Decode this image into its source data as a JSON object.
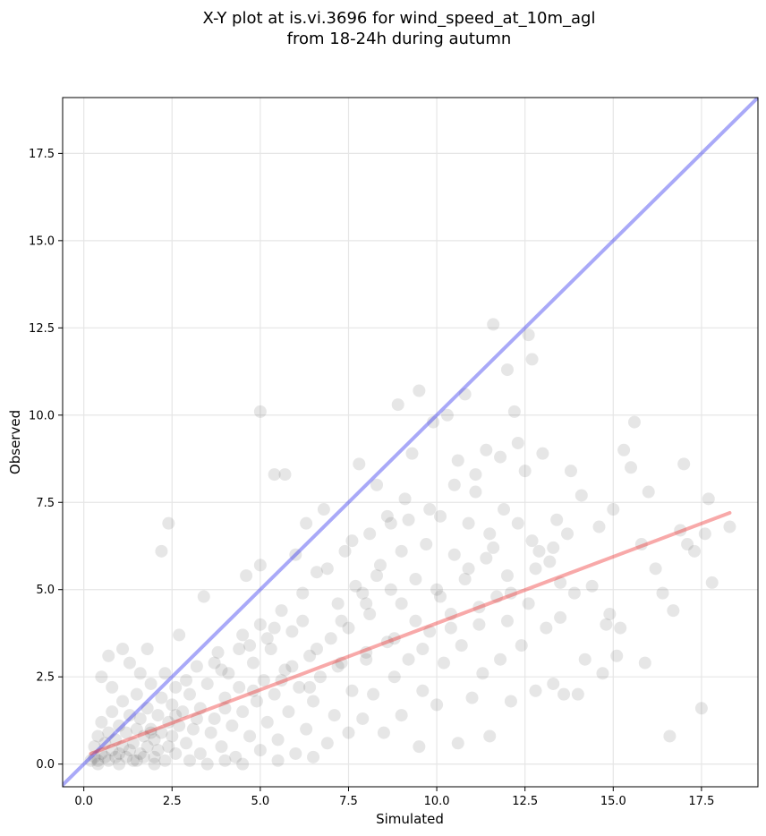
{
  "chart_data": {
    "type": "scatter",
    "title_line1": "X-Y plot at is.vi.3696 for wind_speed_at_10m_agl",
    "title_line2": "from 18-24h during autumn",
    "xlabel": "Simulated",
    "ylabel": "Observed",
    "xlim": [
      -0.6,
      19.1
    ],
    "ylim": [
      -0.65,
      19.1
    ],
    "xticks": [
      0.0,
      2.5,
      5.0,
      7.5,
      10.0,
      12.5,
      15.0,
      17.5
    ],
    "yticks": [
      0.0,
      2.5,
      5.0,
      7.5,
      10.0,
      12.5,
      15.0,
      17.5
    ],
    "xtick_labels": [
      "0.0",
      "2.5",
      "5.0",
      "7.5",
      "10.0",
      "12.5",
      "15.0",
      "17.5"
    ],
    "ytick_labels": [
      "0.0",
      "2.5",
      "5.0",
      "7.5",
      "10.0",
      "12.5",
      "15.0",
      "17.5"
    ],
    "grid": true,
    "point_color": "#333333",
    "point_opacity": 0.12,
    "identity_line": {
      "x": [
        -0.6,
        19.1
      ],
      "y": [
        -0.6,
        19.1
      ],
      "color": "#3333ee"
    },
    "fit_line": {
      "x": [
        0.2,
        18.3
      ],
      "y": [
        0.3,
        7.2
      ],
      "color": "#ee3333"
    },
    "points": [
      [
        0.2,
        0.1
      ],
      [
        0.3,
        0.2
      ],
      [
        0.3,
        0.5
      ],
      [
        0.4,
        0.1
      ],
      [
        0.4,
        0.8
      ],
      [
        0.5,
        0.3
      ],
      [
        0.5,
        1.2
      ],
      [
        0.6,
        0.2
      ],
      [
        0.6,
        0.6
      ],
      [
        0.7,
        0.9
      ],
      [
        0.7,
        0.1
      ],
      [
        0.8,
        0.4
      ],
      [
        0.8,
        1.5
      ],
      [
        0.9,
        0.2
      ],
      [
        0.9,
        0.7
      ],
      [
        1.0,
        0.3
      ],
      [
        1.0,
        1.1
      ],
      [
        1.1,
        0.5
      ],
      [
        1.1,
        1.8
      ],
      [
        1.2,
        0.2
      ],
      [
        1.2,
        0.9
      ],
      [
        1.3,
        0.4
      ],
      [
        1.3,
        1.4
      ],
      [
        1.4,
        0.1
      ],
      [
        1.4,
        0.6
      ],
      [
        1.5,
        1.0
      ],
      [
        1.5,
        2.0
      ],
      [
        1.6,
        0.3
      ],
      [
        1.6,
        1.3
      ],
      [
        1.7,
        0.8
      ],
      [
        1.7,
        0.2
      ],
      [
        1.8,
        1.6
      ],
      [
        1.8,
        0.5
      ],
      [
        1.9,
        1.0
      ],
      [
        1.9,
        2.3
      ],
      [
        2.0,
        0.2
      ],
      [
        2.0,
        0.7
      ],
      [
        2.1,
        1.4
      ],
      [
        2.1,
        0.4
      ],
      [
        2.2,
        1.9
      ],
      [
        2.2,
        0.9
      ],
      [
        2.3,
        0.1
      ],
      [
        2.3,
        2.6
      ],
      [
        2.4,
        1.2
      ],
      [
        2.4,
        0.5
      ],
      [
        2.5,
        1.7
      ],
      [
        2.5,
        0.8
      ],
      [
        2.6,
        2.2
      ],
      [
        2.6,
        0.3
      ],
      [
        2.7,
        1.1
      ],
      [
        0.5,
        2.5
      ],
      [
        0.7,
        3.1
      ],
      [
        1.1,
        3.3
      ],
      [
        1.8,
        3.3
      ],
      [
        2.2,
        6.1
      ],
      [
        2.4,
        6.9
      ],
      [
        2.7,
        3.7
      ],
      [
        1.3,
        2.9
      ],
      [
        0.8,
        2.2
      ],
      [
        1.6,
        2.6
      ],
      [
        2.8,
        1.5
      ],
      [
        2.9,
        0.6
      ],
      [
        3.0,
        2.0
      ],
      [
        3.1,
        1.0
      ],
      [
        3.2,
        2.8
      ],
      [
        3.3,
        0.3
      ],
      [
        3.3,
        1.6
      ],
      [
        3.4,
        4.8
      ],
      [
        3.5,
        2.3
      ],
      [
        3.6,
        0.9
      ],
      [
        3.7,
        1.3
      ],
      [
        3.8,
        3.2
      ],
      [
        3.9,
        0.5
      ],
      [
        4.0,
        1.9
      ],
      [
        4.1,
        2.6
      ],
      [
        4.2,
        1.1
      ],
      [
        4.3,
        0.2
      ],
      [
        4.4,
        2.2
      ],
      [
        4.5,
        3.7
      ],
      [
        4.5,
        1.5
      ],
      [
        4.6,
        5.4
      ],
      [
        4.7,
        0.8
      ],
      [
        4.8,
        2.9
      ],
      [
        4.9,
        1.8
      ],
      [
        5.0,
        4.0
      ],
      [
        5.0,
        0.4
      ],
      [
        5.0,
        5.7
      ],
      [
        5.0,
        10.1
      ],
      [
        5.1,
        2.4
      ],
      [
        5.2,
        1.2
      ],
      [
        5.3,
        3.3
      ],
      [
        5.4,
        2.0
      ],
      [
        5.4,
        8.3
      ],
      [
        5.5,
        0.7
      ],
      [
        5.6,
        4.4
      ],
      [
        5.7,
        8.3
      ],
      [
        5.7,
        2.7
      ],
      [
        5.8,
        1.5
      ],
      [
        5.9,
        3.8
      ],
      [
        6.0,
        6.0
      ],
      [
        6.0,
        0.3
      ],
      [
        6.1,
        2.2
      ],
      [
        6.2,
        4.9
      ],
      [
        6.3,
        1.0
      ],
      [
        6.3,
        6.9
      ],
      [
        6.4,
        3.1
      ],
      [
        6.5,
        1.8
      ],
      [
        6.6,
        5.5
      ],
      [
        6.7,
        2.5
      ],
      [
        6.8,
        7.3
      ],
      [
        6.9,
        0.6
      ],
      [
        7.0,
        3.6
      ],
      [
        7.1,
        1.4
      ],
      [
        7.2,
        4.6
      ],
      [
        7.3,
        2.9
      ],
      [
        7.4,
        6.1
      ],
      [
        7.5,
        0.9
      ],
      [
        7.5,
        3.9
      ],
      [
        7.6,
        2.1
      ],
      [
        7.7,
        5.1
      ],
      [
        7.8,
        8.6
      ],
      [
        7.9,
        1.3
      ],
      [
        8.0,
        3.2
      ],
      [
        8.1,
        6.6
      ],
      [
        8.1,
        4.3
      ],
      [
        8.2,
        2.0
      ],
      [
        8.3,
        8.0
      ],
      [
        8.4,
        5.7
      ],
      [
        8.5,
        0.9
      ],
      [
        8.6,
        3.5
      ],
      [
        8.7,
        6.9
      ],
      [
        8.8,
        2.5
      ],
      [
        8.9,
        10.3
      ],
      [
        9.0,
        4.6
      ],
      [
        9.0,
        1.4
      ],
      [
        9.1,
        7.6
      ],
      [
        9.2,
        3.0
      ],
      [
        9.3,
        8.9
      ],
      [
        9.4,
        5.3
      ],
      [
        9.5,
        0.5
      ],
      [
        9.5,
        10.7
      ],
      [
        9.6,
        2.1
      ],
      [
        9.7,
        6.3
      ],
      [
        9.8,
        3.8
      ],
      [
        9.9,
        9.8
      ],
      [
        10.0,
        5.0
      ],
      [
        10.0,
        1.7
      ],
      [
        10.1,
        7.1
      ],
      [
        10.2,
        2.9
      ],
      [
        10.3,
        10.0
      ],
      [
        10.4,
        4.3
      ],
      [
        10.5,
        6.0
      ],
      [
        10.6,
        0.6
      ],
      [
        10.6,
        8.7
      ],
      [
        10.7,
        3.4
      ],
      [
        10.8,
        10.6
      ],
      [
        10.9,
        5.6
      ],
      [
        11.0,
        1.9
      ],
      [
        11.1,
        7.8
      ],
      [
        11.2,
        4.0
      ],
      [
        11.3,
        2.6
      ],
      [
        11.4,
        9.0
      ],
      [
        11.5,
        6.6
      ],
      [
        11.5,
        0.8
      ],
      [
        11.6,
        12.6
      ],
      [
        11.7,
        4.8
      ],
      [
        11.8,
        3.0
      ],
      [
        11.9,
        7.3
      ],
      [
        12.0,
        11.3
      ],
      [
        12.0,
        5.4
      ],
      [
        12.1,
        1.8
      ],
      [
        12.2,
        10.1
      ],
      [
        12.3,
        6.9
      ],
      [
        12.4,
        3.4
      ],
      [
        12.5,
        8.4
      ],
      [
        12.6,
        12.3
      ],
      [
        12.6,
        4.6
      ],
      [
        12.7,
        11.6
      ],
      [
        12.8,
        2.1
      ],
      [
        12.9,
        6.1
      ],
      [
        13.0,
        8.9
      ],
      [
        13.1,
        3.9
      ],
      [
        13.2,
        5.8
      ],
      [
        13.3,
        2.3
      ],
      [
        13.4,
        7.0
      ],
      [
        13.5,
        4.2
      ],
      [
        13.6,
        2.0
      ],
      [
        13.7,
        6.6
      ],
      [
        13.8,
        8.4
      ],
      [
        13.9,
        4.9
      ],
      [
        14.0,
        2.0
      ],
      [
        14.1,
        7.7
      ],
      [
        14.2,
        3.0
      ],
      [
        14.4,
        5.1
      ],
      [
        14.6,
        6.8
      ],
      [
        14.7,
        2.6
      ],
      [
        14.9,
        4.3
      ],
      [
        15.0,
        7.3
      ],
      [
        15.2,
        3.9
      ],
      [
        15.3,
        9.0
      ],
      [
        15.5,
        8.5
      ],
      [
        15.6,
        9.8
      ],
      [
        15.8,
        6.3
      ],
      [
        15.9,
        2.9
      ],
      [
        16.0,
        7.8
      ],
      [
        16.2,
        5.6
      ],
      [
        16.4,
        4.9
      ],
      [
        16.6,
        0.8
      ],
      [
        16.7,
        4.4
      ],
      [
        16.9,
        6.7
      ],
      [
        17.0,
        8.6
      ],
      [
        17.1,
        6.3
      ],
      [
        17.3,
        6.1
      ],
      [
        17.5,
        1.6
      ],
      [
        17.7,
        7.6
      ],
      [
        17.8,
        5.2
      ],
      [
        18.3,
        6.8
      ],
      [
        17.6,
        6.6
      ],
      [
        15.1,
        3.1
      ],
      [
        14.8,
        4.0
      ],
      [
        1.0,
        0.0
      ],
      [
        1.5,
        0.1
      ],
      [
        2.0,
        0.0
      ],
      [
        0.4,
        0.0
      ],
      [
        3.0,
        0.1
      ],
      [
        3.5,
        0.0
      ],
      [
        4.0,
        0.1
      ],
      [
        4.5,
        0.0
      ],
      [
        5.5,
        0.1
      ],
      [
        6.5,
        0.2
      ],
      [
        2.9,
        2.4
      ],
      [
        3.7,
        2.9
      ],
      [
        4.4,
        3.3
      ],
      [
        5.2,
        3.6
      ],
      [
        5.9,
        2.8
      ],
      [
        6.6,
        3.3
      ],
      [
        7.3,
        4.1
      ],
      [
        8.0,
        4.6
      ],
      [
        8.7,
        5.0
      ],
      [
        9.4,
        4.1
      ],
      [
        10.1,
        4.8
      ],
      [
        10.8,
        5.3
      ],
      [
        11.4,
        5.9
      ],
      [
        12.1,
        4.9
      ],
      [
        12.8,
        5.6
      ],
      [
        13.5,
        5.2
      ],
      [
        3.2,
        1.3
      ],
      [
        4.0,
        1.6
      ],
      [
        4.8,
        2.1
      ],
      [
        5.6,
        2.4
      ],
      [
        6.4,
        2.2
      ],
      [
        7.2,
        2.8
      ],
      [
        8.0,
        3.0
      ],
      [
        8.8,
        3.6
      ],
      [
        9.6,
        3.3
      ],
      [
        10.4,
        3.9
      ],
      [
        11.2,
        4.5
      ],
      [
        12.0,
        4.1
      ],
      [
        2.6,
        1.4
      ],
      [
        1.9,
        0.9
      ],
      [
        9.8,
        7.3
      ],
      [
        10.5,
        8.0
      ],
      [
        11.1,
        8.3
      ],
      [
        11.8,
        8.8
      ],
      [
        12.3,
        9.2
      ],
      [
        8.6,
        7.1
      ],
      [
        9.2,
        7.0
      ],
      [
        7.6,
        6.4
      ],
      [
        6.9,
        5.6
      ],
      [
        10.9,
        6.9
      ],
      [
        11.6,
        6.2
      ],
      [
        12.7,
        6.4
      ],
      [
        13.3,
        6.2
      ],
      [
        9.0,
        6.1
      ],
      [
        8.3,
        5.4
      ],
      [
        7.9,
        4.9
      ],
      [
        6.2,
        4.1
      ],
      [
        5.4,
        3.9
      ],
      [
        4.7,
        3.4
      ],
      [
        3.9,
        2.7
      ]
    ]
  }
}
